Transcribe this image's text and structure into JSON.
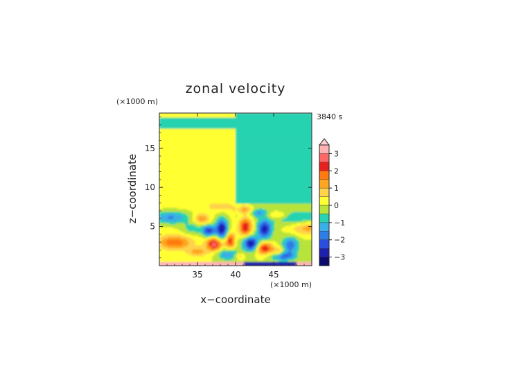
{
  "chart_data": {
    "type": "heatmap",
    "title": "zonal velocity",
    "time_label": "3840 s",
    "xlabel": "x−coordinate",
    "ylabel": "z−coordinate",
    "x_unit": "(×1000 m)",
    "y_unit": "(×1000 m)",
    "xlim": [
      30,
      50
    ],
    "ylim": [
      0,
      19.5
    ],
    "x_ticks": [
      35,
      40,
      45
    ],
    "y_ticks": [
      5,
      10,
      15
    ],
    "x_tick_labels": [
      "35",
      "40",
      "45"
    ],
    "y_tick_labels": [
      "5",
      "10",
      "15"
    ],
    "colorbar": {
      "levels": [
        -3.5,
        -3,
        -2.5,
        -2,
        -1.5,
        -1,
        -0.5,
        0,
        0.5,
        1,
        1.5,
        2,
        2.5,
        3,
        3.5
      ],
      "colors": [
        "#0b0b6e",
        "#1f1fb0",
        "#2a4fe0",
        "#2f7de6",
        "#3aaee6",
        "#27d3b0",
        "#b8e33a",
        "#ffff33",
        "#ffd34a",
        "#ffa51f",
        "#ff7a10",
        "#e8201f",
        "#ff6666",
        "#ffb3b3"
      ],
      "tick_values": [
        -3,
        -2,
        -1,
        0,
        1,
        2,
        3
      ],
      "tick_labels": [
        "−3",
        "−2",
        "−1",
        "0",
        "1",
        "2",
        "3"
      ],
      "extend": "max"
    },
    "field_description": "Zonal velocity field over an idealized mountain centered at x=40 km; upper layer uniform ~0 to +0.5 left of x=40 and ~-0.5 right; wave pattern with alternating positive/negative lobes below about 8 km."
  }
}
